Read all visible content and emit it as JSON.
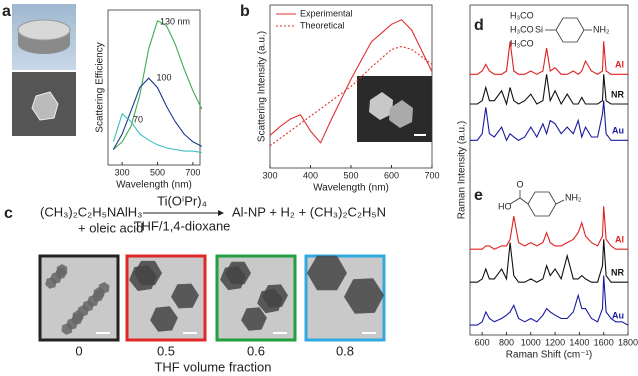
{
  "panel_labels": [
    "a",
    "b",
    "c",
    "d",
    "e"
  ],
  "reaction": {
    "reactant1": "(CH₃)₂C₂H₅NAlH₃",
    "reactant2": "+ oleic acid",
    "catalyst": "Ti(OⁱPr)₄",
    "solvent": "THF/1,4-dioxane",
    "products": "Al-NP + H₂ + (CH₃)₂C₂H₅N"
  },
  "tem": {
    "fractions": [
      0,
      0.5,
      0.6,
      0.8
    ],
    "frame_colors": [
      "#222222",
      "#e02828",
      "#20a040",
      "#30a8e0"
    ],
    "xlabel": "THF volume fraction"
  },
  "molecule_d": [
    "H₃CO",
    "H₃CO",
    "H₃CO",
    "Si",
    "NH₂"
  ],
  "molecule_e": [
    "O",
    "HO",
    "NH₂"
  ],
  "chart_data": [
    {
      "type": "line",
      "xlabel": "Wavelength (nm)",
      "ylabel": "Scattering Efficiency",
      "x": [
        250,
        300,
        350,
        400,
        450,
        500,
        550,
        600,
        650,
        700,
        750
      ],
      "xlim": [
        220,
        740
      ],
      "xticks": [
        300,
        500,
        700
      ],
      "ylim": [
        0,
        10
      ],
      "series": [
        {
          "name": "130 nm",
          "color": "#3cae4c",
          "values": [
            1.0,
            1.5,
            2.5,
            4.5,
            7.5,
            9.3,
            9.0,
            7.8,
            6.2,
            4.8,
            3.6
          ]
        },
        {
          "name": "100",
          "color": "#1c3a8c",
          "values": [
            1.0,
            2.0,
            3.5,
            5.0,
            5.6,
            5.0,
            3.8,
            2.8,
            2.0,
            1.5,
            1.2
          ]
        },
        {
          "name": "70",
          "color": "#3cc0c0",
          "values": [
            1.5,
            3.3,
            2.8,
            2.0,
            1.6,
            1.3,
            1.1,
            1.0,
            0.9,
            0.9,
            0.8
          ]
        }
      ]
    },
    {
      "type": "line",
      "xlabel": "Wavelength (nm)",
      "ylabel": "Scattering Intensity (a.u.)",
      "legend": "upper left",
      "x": [
        300,
        325,
        350,
        375,
        400,
        425,
        450,
        500,
        550,
        600,
        625,
        650,
        700
      ],
      "xlim": [
        300,
        700
      ],
      "xticks": [
        300,
        400,
        500,
        600,
        700
      ],
      "ylim": [
        0,
        1.1
      ],
      "series": [
        {
          "name": "Experimental",
          "color": "#e03030",
          "style": "solid",
          "values": [
            0.22,
            0.28,
            0.33,
            0.36,
            0.25,
            0.17,
            0.32,
            0.6,
            0.85,
            0.97,
            1.0,
            0.93,
            0.65
          ]
        },
        {
          "name": "Theoretical",
          "color": "#e03030",
          "style": "dotted",
          "values": [
            0.15,
            0.2,
            0.25,
            0.3,
            0.35,
            0.4,
            0.45,
            0.55,
            0.68,
            0.8,
            0.82,
            0.8,
            0.7
          ]
        }
      ]
    },
    {
      "type": "line",
      "xlabel": "Raman Shift (cm⁻¹)",
      "ylabel": "Raman Intensity (a.u.)",
      "x": [
        500,
        560,
        600,
        630,
        660,
        700,
        760,
        800,
        830,
        860,
        900,
        950,
        1000,
        1050,
        1100,
        1130,
        1160,
        1200,
        1250,
        1300,
        1350,
        1390,
        1420,
        1450,
        1500,
        1550,
        1590,
        1600,
        1620,
        1660,
        1700,
        1750,
        1800
      ],
      "xlim": [
        500,
        1800
      ],
      "xticks": [
        600,
        800,
        1000,
        1200,
        1400,
        1600,
        1800
      ],
      "ylim": [
        0,
        100
      ],
      "series": [
        {
          "name": "Al",
          "color": "#e02020",
          "values": [
            79,
            79,
            80,
            82,
            80,
            79,
            79,
            80,
            89,
            80,
            79,
            79,
            80,
            79,
            80,
            87,
            80,
            81,
            79,
            79,
            80,
            79,
            80,
            83,
            80,
            79,
            80,
            89,
            80,
            79,
            79,
            79,
            79
          ]
        },
        {
          "name": "NR",
          "color": "#111111",
          "values": [
            70,
            70,
            71,
            75,
            71,
            71,
            74,
            70,
            75,
            71,
            70,
            71,
            73,
            70,
            71,
            79,
            71,
            74,
            70,
            73,
            70,
            70,
            72,
            70,
            70,
            70,
            71,
            79,
            71,
            70,
            70,
            70,
            70
          ]
        },
        {
          "name": "Au",
          "color": "#1a1aa0",
          "values": [
            59,
            59,
            61,
            69,
            61,
            60,
            63,
            59,
            61,
            60,
            59,
            60,
            63,
            60,
            64,
            61,
            65,
            64,
            61,
            63,
            61,
            65,
            60,
            63,
            60,
            60,
            67,
            71,
            61,
            59,
            59,
            59,
            59
          ]
        },
        {
          "name": "Al",
          "color": "#e02020",
          "values": [
            26,
            26,
            26,
            27,
            27,
            26,
            27,
            27,
            29,
            36,
            28,
            27,
            28,
            27,
            28,
            31,
            28,
            27,
            27,
            28,
            29,
            31,
            34,
            30,
            28,
            27,
            30,
            39,
            29,
            27,
            26,
            26,
            26
          ]
        },
        {
          "name": "NR",
          "color": "#111111",
          "values": [
            16,
            16,
            17,
            20,
            17,
            17,
            20,
            17,
            28,
            18,
            16,
            16,
            17,
            16,
            17,
            21,
            18,
            20,
            17,
            24,
            17,
            17,
            18,
            17,
            16,
            16,
            21,
            29,
            18,
            16,
            16,
            16,
            16
          ]
        },
        {
          "name": "Au",
          "color": "#1a1aa0",
          "values": [
            3,
            3,
            4,
            7,
            5,
            4,
            5,
            6,
            7,
            9,
            5,
            4,
            5,
            4,
            6,
            8,
            7,
            6,
            5,
            5,
            7,
            12,
            8,
            8,
            5,
            4,
            8,
            18,
            7,
            5,
            4,
            4,
            3
          ]
        }
      ]
    }
  ]
}
